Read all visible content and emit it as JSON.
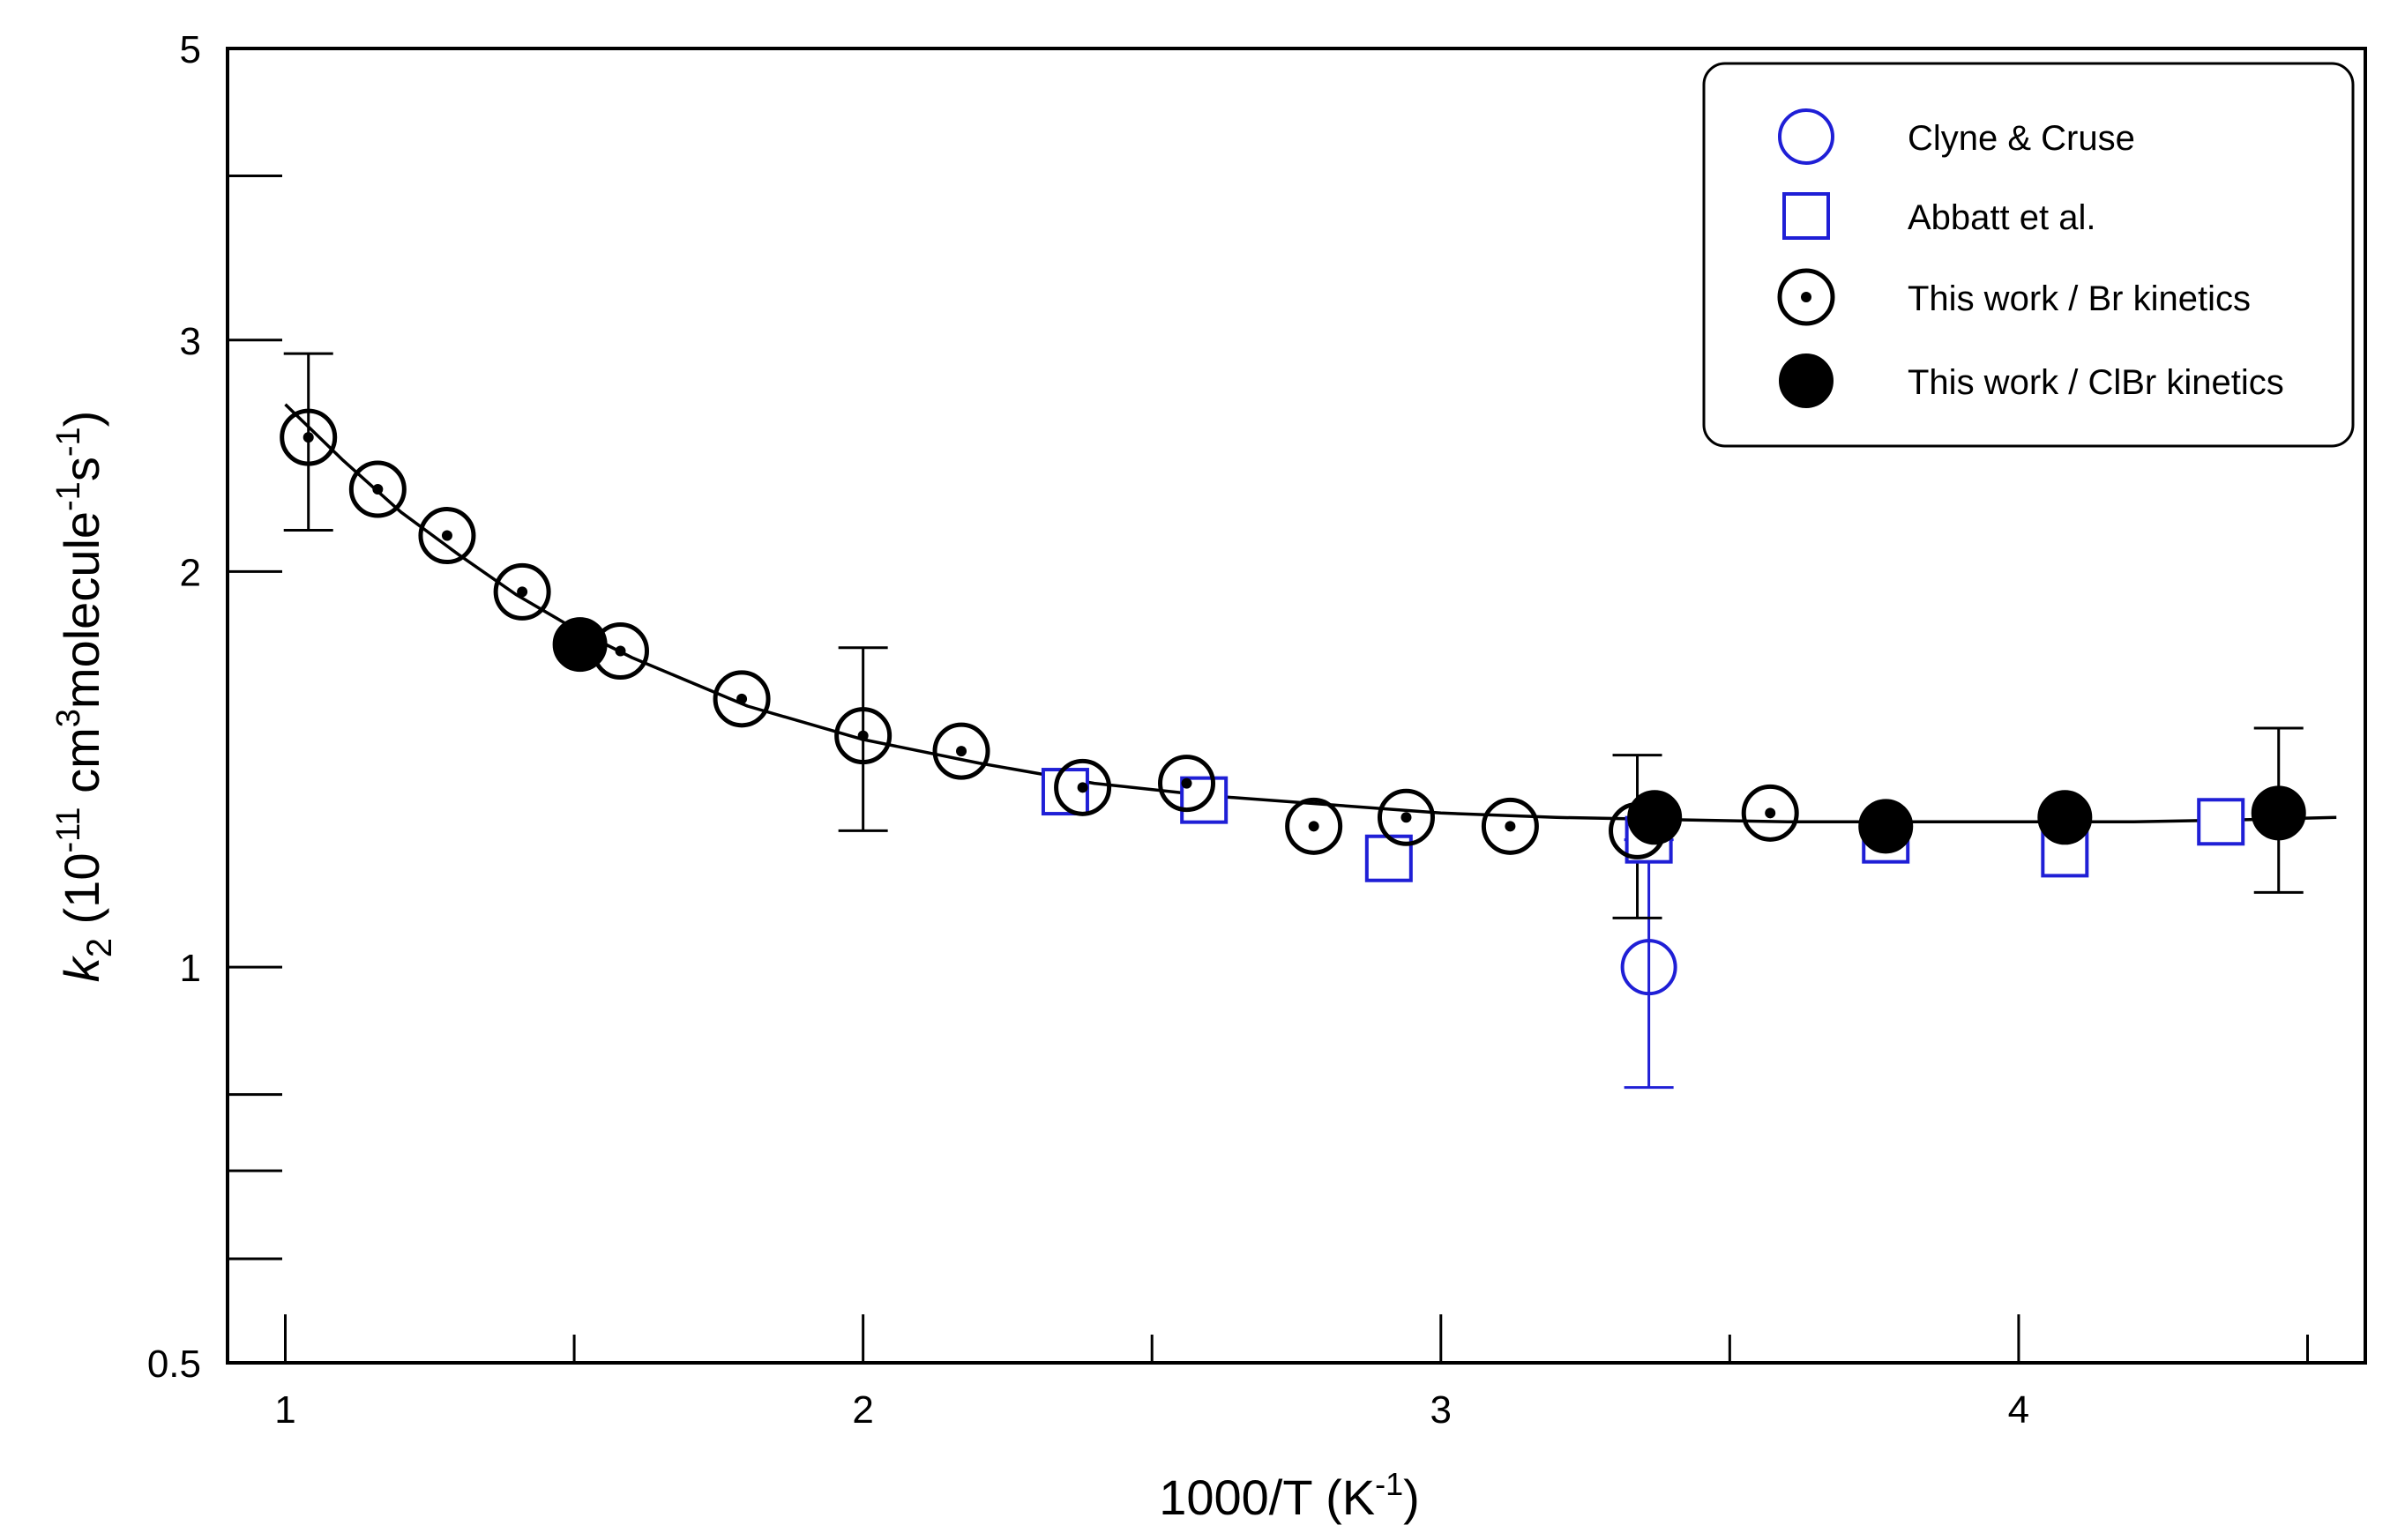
{
  "chart_data": {
    "type": "scatter",
    "xlabel": "1000/T (K⁻¹)",
    "ylabel": "k₂ (10⁻¹¹ cm³molecule⁻¹s⁻¹)",
    "ylabel_parts": {
      "k": "k",
      "k_sub": "2",
      "open": " (10",
      "exp1": "-11",
      "unit1": " cm",
      "exp2": "3",
      "unit2": "molecule",
      "exp3": "-1",
      "unit3": "s",
      "exp4": "-1",
      "close": ")"
    },
    "xlabel_parts": {
      "main": "1000/T (K",
      "exp": "-1",
      "close": ")"
    },
    "xlim": [
      0.9,
      4.6
    ],
    "ylim": [
      0.5,
      5
    ],
    "yscale": "log",
    "x_major_ticks": [
      1,
      2,
      3,
      4
    ],
    "x_tick_labels": [
      "1",
      "2",
      "3",
      "4"
    ],
    "x_minor_ticks": [
      1.5,
      2.5,
      3.5,
      4.5
    ],
    "y_labeled_ticks": [
      0.5,
      1,
      2,
      3,
      5
    ],
    "y_tick_labels": [
      "0.5",
      "1",
      "2",
      "3",
      "5"
    ],
    "y_minor_ticks": [
      0.6,
      0.7,
      0.8,
      4
    ],
    "grid": false,
    "legend_position": "top-right",
    "colors": {
      "blue": "#1f1fd6",
      "black": "#000000"
    },
    "series": [
      {
        "name": "Clyne & Cruse",
        "marker": "open-circle",
        "color": "#1f1fd6",
        "points": [
          {
            "x": 3.36,
            "y": 1.0,
            "err_low": 0.81,
            "err_high": 1.25
          }
        ]
      },
      {
        "name": "Abbatt et al.",
        "marker": "open-square",
        "color": "#1f1fd6",
        "points": [
          {
            "x": 2.35,
            "y": 1.36
          },
          {
            "x": 2.59,
            "y": 1.34
          },
          {
            "x": 2.91,
            "y": 1.21
          },
          {
            "x": 3.36,
            "y": 1.25
          },
          {
            "x": 3.77,
            "y": 1.25
          },
          {
            "x": 4.08,
            "y": 1.22
          },
          {
            "x": 4.35,
            "y": 1.29
          }
        ]
      },
      {
        "name": "This work / Br kinetics",
        "marker": "dotted-circle",
        "color": "#000000",
        "points": [
          {
            "x": 1.04,
            "y": 2.53,
            "err_low": 2.15,
            "err_high": 2.93
          },
          {
            "x": 1.16,
            "y": 2.31
          },
          {
            "x": 1.28,
            "y": 2.13
          },
          {
            "x": 1.41,
            "y": 1.93
          },
          {
            "x": 1.58,
            "y": 1.74
          },
          {
            "x": 1.79,
            "y": 1.6
          },
          {
            "x": 2.0,
            "y": 1.5,
            "err_low": 1.27,
            "err_high": 1.75
          },
          {
            "x": 2.17,
            "y": 1.46
          },
          {
            "x": 2.38,
            "y": 1.37
          },
          {
            "x": 2.56,
            "y": 1.38
          },
          {
            "x": 2.78,
            "y": 1.28
          },
          {
            "x": 2.94,
            "y": 1.3
          },
          {
            "x": 3.12,
            "y": 1.28
          },
          {
            "x": 3.34,
            "y": 1.27,
            "err_low": 1.09,
            "err_high": 1.45
          },
          {
            "x": 3.57,
            "y": 1.31
          }
        ]
      },
      {
        "name": "This work / ClBr kinetics",
        "marker": "filled-circle",
        "color": "#000000",
        "points": [
          {
            "x": 1.51,
            "y": 1.76
          },
          {
            "x": 3.37,
            "y": 1.3
          },
          {
            "x": 3.77,
            "y": 1.28
          },
          {
            "x": 4.08,
            "y": 1.3
          },
          {
            "x": 4.45,
            "y": 1.31,
            "err_low": 1.14,
            "err_high": 1.52
          }
        ]
      }
    ],
    "fit_curve": {
      "name": "",
      "color": "#000000",
      "x": [
        1.0,
        1.1,
        1.2,
        1.3,
        1.4,
        1.5,
        1.6,
        1.8,
        2.0,
        2.2,
        2.4,
        2.6,
        2.8,
        3.0,
        3.2,
        3.4,
        3.6,
        3.8,
        4.0,
        4.2,
        4.4,
        4.55
      ],
      "y": [
        2.68,
        2.43,
        2.22,
        2.06,
        1.92,
        1.81,
        1.72,
        1.58,
        1.49,
        1.43,
        1.38,
        1.35,
        1.33,
        1.31,
        1.3,
        1.295,
        1.29,
        1.29,
        1.29,
        1.29,
        1.295,
        1.3
      ]
    }
  }
}
